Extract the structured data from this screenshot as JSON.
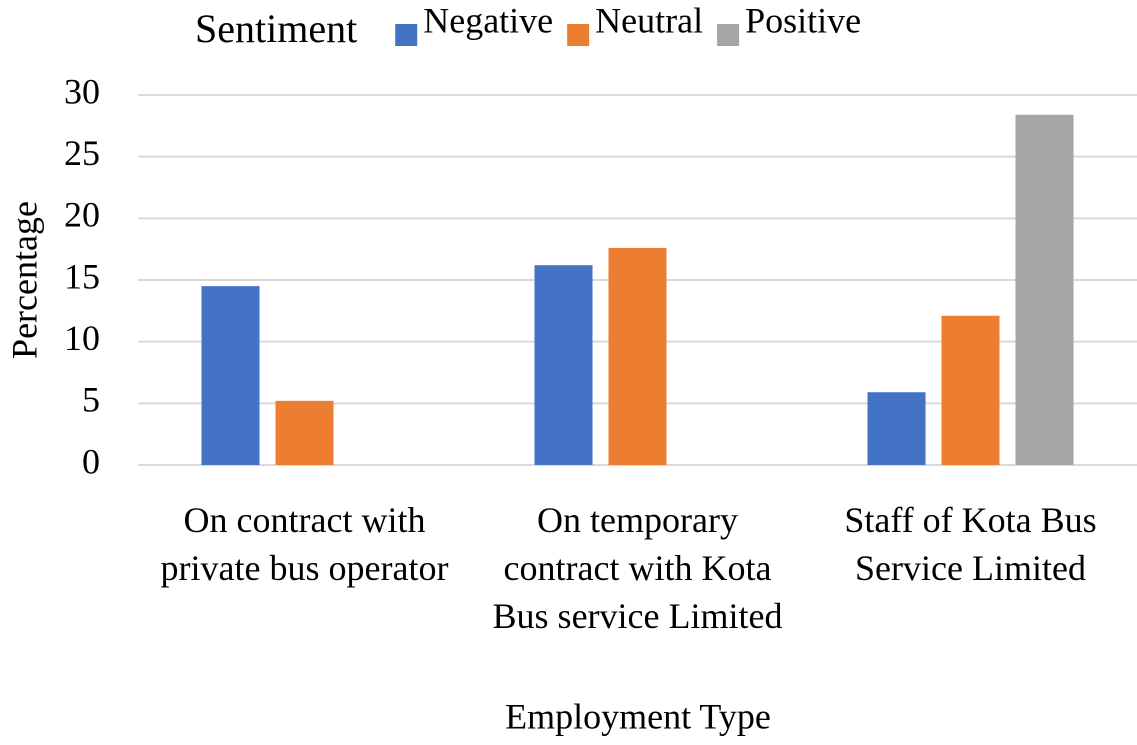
{
  "chart_data": {
    "type": "bar",
    "legend_title": "Sentiment",
    "x_label": "Employment Type",
    "y_label": "Percentage",
    "categories": [
      "On contract with private bus operator",
      "On temporary contract with Kota Bus service Limited",
      "Staff of Kota Bus Service Limited"
    ],
    "series": [
      {
        "name": "Negative",
        "color": "#4472c4",
        "values": [
          14.5,
          16.2,
          5.9
        ]
      },
      {
        "name": "Neutral",
        "color": "#ed7d31",
        "values": [
          5.2,
          17.6,
          12.1
        ]
      },
      {
        "name": "Positive",
        "color": "#a5a5a5",
        "values": [
          null,
          null,
          28.4
        ]
      }
    ],
    "ylim": [
      0,
      30
    ],
    "yticks": [
      0,
      5,
      10,
      15,
      20,
      25,
      30
    ],
    "grid": true,
    "legend": "top"
  }
}
